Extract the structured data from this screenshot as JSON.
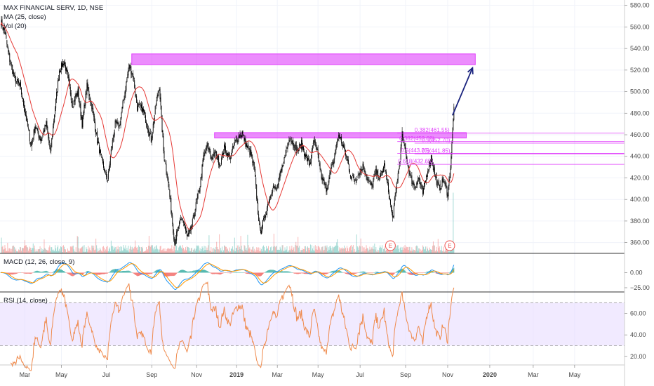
{
  "header": {
    "symbol_line": "MAX FINANCIAL SERV, 1D, NSE",
    "ma_line": "MA (25, close)",
    "vol_line": "Vol (20)"
  },
  "macd_label": "MACD (12, 26, close, 9)",
  "rsi_label": "RSI (14, close)",
  "earnings_marker": "E",
  "colors": {
    "candle": "#000000",
    "ma": "#e53935",
    "zone": "#e040fb",
    "arrow": "#1a237e",
    "macd": "#2196f3",
    "signal": "#ff9800",
    "rsi": "#ef8a4c",
    "rsi_band": "#e8dcff",
    "vol_up": "#26a69a",
    "vol_down": "#ef5350"
  },
  "chart_data": {
    "type": "candlestick",
    "price_axis": {
      "range": [
        350,
        585
      ],
      "ticks": [
        360,
        380,
        400,
        420,
        440,
        460,
        480,
        500,
        520,
        540,
        560,
        580
      ],
      "tick_labels": [
        "360.00",
        "380.00",
        "400.00",
        "420.00",
        "440.00",
        "460.00",
        "480.00",
        "500.00",
        "520.00",
        "540.00",
        "560.00",
        "580.00"
      ]
    },
    "macd_axis": {
      "range": [
        -32,
        32
      ],
      "ticks": [
        0,
        -25
      ],
      "tick_labels": [
        "0.00",
        "−25.00"
      ]
    },
    "rsi_axis": {
      "range": [
        12,
        80
      ],
      "ticks": [
        60,
        40,
        20
      ],
      "tick_labels": [
        "60.00",
        "40.00",
        "20.00"
      ],
      "band": [
        30,
        70
      ]
    },
    "time_axis": {
      "labels": [
        "Mar",
        "May",
        "Jul",
        "Sep",
        "Nov",
        "2019",
        "Mar",
        "May",
        "Jul",
        "Sep",
        "Nov",
        "2020",
        "Mar",
        "May"
      ],
      "label_day_index": [
        35,
        88,
        153,
        219,
        284,
        342,
        401,
        460,
        521,
        587,
        648,
        709,
        772,
        832
      ]
    },
    "price_path": [
      [
        0,
        565
      ],
      [
        6,
        555
      ],
      [
        12,
        532
      ],
      [
        20,
        512
      ],
      [
        28,
        505
      ],
      [
        36,
        478
      ],
      [
        44,
        450
      ],
      [
        50,
        468
      ],
      [
        58,
        455
      ],
      [
        66,
        470
      ],
      [
        72,
        443
      ],
      [
        78,
        480
      ],
      [
        85,
        520
      ],
      [
        92,
        528
      ],
      [
        98,
        510
      ],
      [
        104,
        488
      ],
      [
        112,
        500
      ],
      [
        118,
        470
      ],
      [
        125,
        505
      ],
      [
        132,
        487
      ],
      [
        140,
        455
      ],
      [
        148,
        432
      ],
      [
        155,
        418
      ],
      [
        160,
        445
      ],
      [
        166,
        470
      ],
      [
        172,
        468
      ],
      [
        180,
        500
      ],
      [
        186,
        524
      ],
      [
        192,
        515
      ],
      [
        198,
        485
      ],
      [
        205,
        485
      ],
      [
        212,
        470
      ],
      [
        218,
        455
      ],
      [
        225,
        488
      ],
      [
        230,
        505
      ],
      [
        236,
        445
      ],
      [
        242,
        420
      ],
      [
        248,
        385
      ],
      [
        252,
        360
      ],
      [
        258,
        375
      ],
      [
        264,
        382
      ],
      [
        270,
        365
      ],
      [
        276,
        372
      ],
      [
        282,
        392
      ],
      [
        288,
        408
      ],
      [
        294,
        440
      ],
      [
        300,
        450
      ],
      [
        306,
        438
      ],
      [
        312,
        443
      ],
      [
        318,
        432
      ],
      [
        324,
        448
      ],
      [
        332,
        438
      ],
      [
        338,
        450
      ],
      [
        344,
        458
      ],
      [
        350,
        462
      ],
      [
        356,
        450
      ],
      [
        362,
        443
      ],
      [
        368,
        426
      ],
      [
        372,
        395
      ],
      [
        376,
        370
      ],
      [
        382,
        382
      ],
      [
        388,
        398
      ],
      [
        394,
        412
      ],
      [
        400,
        408
      ],
      [
        406,
        425
      ],
      [
        412,
        440
      ],
      [
        418,
        458
      ],
      [
        424,
        452
      ],
      [
        430,
        445
      ],
      [
        436,
        452
      ],
      [
        442,
        440
      ],
      [
        448,
        432
      ],
      [
        454,
        455
      ],
      [
        460,
        440
      ],
      [
        466,
        418
      ],
      [
        472,
        410
      ],
      [
        478,
        425
      ],
      [
        484,
        440
      ],
      [
        490,
        460
      ],
      [
        496,
        450
      ],
      [
        502,
        438
      ],
      [
        508,
        420
      ],
      [
        514,
        418
      ],
      [
        520,
        425
      ],
      [
        526,
        432
      ],
      [
        532,
        418
      ],
      [
        538,
        412
      ],
      [
        544,
        425
      ],
      [
        550,
        420
      ],
      [
        556,
        432
      ],
      [
        562,
        408
      ],
      [
        568,
        382
      ],
      [
        574,
        415
      ],
      [
        578,
        432
      ],
      [
        582,
        460
      ],
      [
        588,
        440
      ],
      [
        594,
        420
      ],
      [
        600,
        412
      ],
      [
        606,
        420
      ],
      [
        612,
        405
      ],
      [
        618,
        425
      ],
      [
        624,
        440
      ],
      [
        630,
        420
      ],
      [
        636,
        410
      ],
      [
        642,
        418
      ],
      [
        648,
        405
      ],
      [
        652,
        430
      ],
      [
        655,
        462
      ],
      [
        657,
        485
      ]
    ],
    "volume_spike": {
      "day": 656,
      "height_frac": 0.95
    },
    "earnings_days": [
      565,
      651
    ],
    "zones": [
      {
        "name": "resistance-upper",
        "day_start": 190,
        "day_end": 688,
        "low": 525,
        "high": 535
      },
      {
        "name": "resistance-mid",
        "day_start": 310,
        "day_end": 675,
        "low": 457,
        "high": 462
      }
    ],
    "fib_lines": [
      {
        "label": "0.382(461.55)",
        "value": 461.5,
        "day_start": 575,
        "label_day": 600
      },
      {
        "label": "0.382(453.68)",
        "value": 453.7,
        "day_start": 575,
        "label_day": 578
      },
      {
        "label": "0.5(452.70)",
        "value": 452.2,
        "day_start": 600,
        "label_day": 610
      },
      {
        "label": "0.5(443.25)",
        "value": 442.8,
        "day_start": 575,
        "label_day": 580
      },
      {
        "label": "0.5(441.85)",
        "value": 442.3,
        "day_start": 600,
        "label_day": 610
      },
      {
        "label": "0.618(432.65)",
        "value": 432.6,
        "day_start": 575,
        "label_day": 576
      }
    ],
    "projection_arrow": {
      "from_day": 655,
      "from_price": 478,
      "to_day": 684,
      "to_price": 522
    }
  }
}
